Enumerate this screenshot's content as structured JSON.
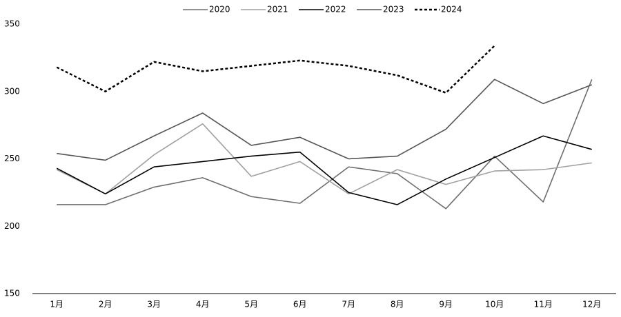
{
  "chart_data": {
    "type": "line",
    "categories": [
      "1月",
      "2月",
      "3月",
      "4月",
      "5月",
      "6月",
      "7月",
      "8月",
      "9月",
      "10月",
      "11月",
      "12月"
    ],
    "series": [
      {
        "name": "2020",
        "color": "#6e6e6e",
        "dash": false,
        "values": [
          216,
          216,
          229,
          236,
          222,
          217,
          244,
          239,
          213,
          252,
          218,
          309
        ]
      },
      {
        "name": "2021",
        "color": "#a0a0a0",
        "dash": false,
        "values": [
          242,
          224,
          253,
          276,
          237,
          248,
          224,
          242,
          231,
          241,
          242,
          247
        ]
      },
      {
        "name": "2022",
        "color": "#000000",
        "dash": false,
        "values": [
          243,
          224,
          244,
          248,
          252,
          255,
          225,
          216,
          235,
          251,
          267,
          257
        ]
      },
      {
        "name": "2023",
        "color": "#555555",
        "dash": false,
        "values": [
          254,
          249,
          267,
          284,
          260,
          266,
          250,
          252,
          272,
          309,
          291,
          305
        ]
      },
      {
        "name": "2024",
        "color": "#000000",
        "dash": true,
        "values": [
          318,
          300,
          322,
          315,
          319,
          323,
          319,
          312,
          299,
          334,
          null,
          null
        ]
      }
    ],
    "ylim": [
      150,
      350
    ],
    "yticks": [
      150,
      200,
      250,
      300,
      350
    ],
    "grid": false,
    "legend": "top"
  }
}
